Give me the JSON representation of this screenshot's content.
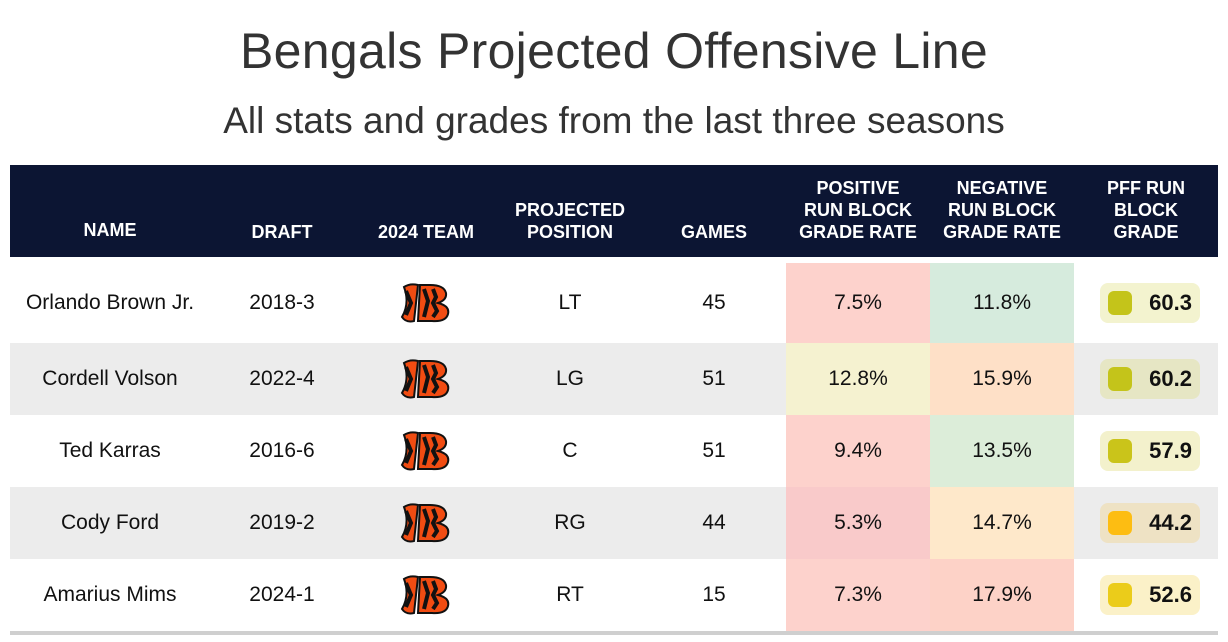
{
  "title": "Bengals Projected Offensive Line",
  "subtitle": "All stats and grades from the last three seasons",
  "logo_icon": "bengals-b-stripes-logo",
  "colors": {
    "header_bg": "#0c1533",
    "logo_orange": "#f14c12",
    "logo_black": "#111111"
  },
  "chart_data": {
    "type": "table",
    "columns": [
      "NAME",
      "DRAFT",
      "2024 TEAM",
      "PROJECTED\nPOSITION",
      "GAMES",
      "POSITIVE\nRUN BLOCK\nGRADE RATE",
      "NEGATIVE\nRUN BLOCK\nGRADE RATE",
      "PFF RUN\nBLOCK\nGRADE"
    ],
    "rows": [
      {
        "name": "Orlando Brown Jr.",
        "draft": "2018-3",
        "team": "bengals-logo",
        "position": "LT",
        "games": "45",
        "pos_rate": "7.5%",
        "neg_rate": "11.8%",
        "grade": "60.3",
        "pos_color": "#fdd2cc",
        "neg_color": "#d6ebdd",
        "grade_bg": "#f3f3cf",
        "dot": "#c4c41a"
      },
      {
        "name": "Cordell Volson",
        "draft": "2022-4",
        "team": "bengals-logo",
        "position": "LG",
        "games": "51",
        "pos_rate": "12.8%",
        "neg_rate": "15.9%",
        "grade": "60.2",
        "pos_color": "#f5f2d0",
        "neg_color": "#fee0c7",
        "grade_bg": "#e6e6c4",
        "dot": "#c4c41a"
      },
      {
        "name": "Ted Karras",
        "draft": "2016-6",
        "team": "bengals-logo",
        "position": "C",
        "games": "51",
        "pos_rate": "9.4%",
        "neg_rate": "13.5%",
        "grade": "57.9",
        "pos_color": "#fdd2cc",
        "neg_color": "#dcedd9",
        "grade_bg": "#f3f1cc",
        "dot": "#cac41a"
      },
      {
        "name": "Cody Ford",
        "draft": "2019-2",
        "team": "bengals-logo",
        "position": "RG",
        "games": "44",
        "pos_rate": "5.3%",
        "neg_rate": "14.7%",
        "grade": "44.2",
        "pos_color": "#f9caca",
        "neg_color": "#fee8ca",
        "grade_bg": "#eee2c4",
        "dot": "#fdbd12"
      },
      {
        "name": "Amarius Mims",
        "draft": "2024-1",
        "team": "bengals-logo",
        "position": "RT",
        "games": "15",
        "pos_rate": "7.3%",
        "neg_rate": "17.9%",
        "grade": "52.6",
        "pos_color": "#fdd2cc",
        "neg_color": "#fdd2c7",
        "grade_bg": "#fbf1c8",
        "dot": "#ebcc1a"
      }
    ]
  }
}
